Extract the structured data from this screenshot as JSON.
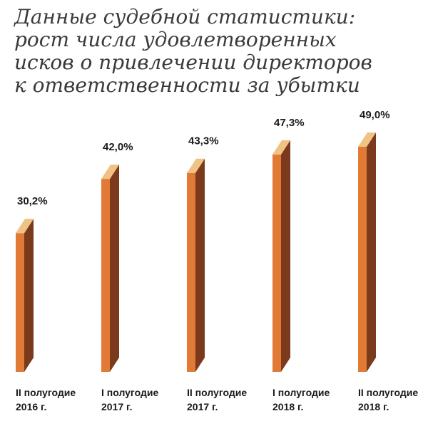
{
  "chart_data": {
    "type": "bar",
    "title_lines": [
      "Данные судебной статистики:",
      "рост числа удовлетворенных",
      "исков о привлечении директоров",
      "к ответственности за убытки"
    ],
    "categories": [
      [
        "II полугодие",
        "2016 г."
      ],
      [
        "I полугодие",
        "2017 г."
      ],
      [
        "II полугодие",
        "2017 г."
      ],
      [
        "I полугодие",
        "2018 г."
      ],
      [
        "II полугодие",
        "2018 г."
      ]
    ],
    "values": [
      30.2,
      42.0,
      43.3,
      47.3,
      49.0
    ],
    "value_labels": [
      "30,2%",
      "42,0%",
      "43,3%",
      "47,3%",
      "49,0%"
    ],
    "xlabel": "",
    "ylabel": "",
    "grid": false,
    "legend": "none",
    "colors": {
      "front": "#e07a35",
      "side": "#7a3a1b",
      "top": "#f0c283",
      "text": "#1a1a1a"
    }
  }
}
